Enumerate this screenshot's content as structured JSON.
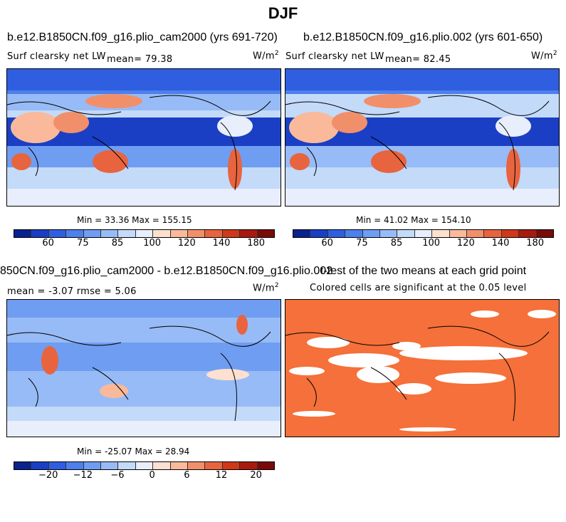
{
  "season": "DJF",
  "panels": [
    {
      "title": "b.e12.B1850CN.f09_g16.plio_cam2000 (yrs 691-720)",
      "variable": "Surf clearsky net LW",
      "stat": "mean=  79.38",
      "units": "W/m",
      "units_exp": "2",
      "minmax": "Min =  33.36 Max = 155.15"
    },
    {
      "title": "b.e12.B1850CN.f09_g16.plio.002 (yrs 601-650)",
      "variable": "Surf clearsky net LW",
      "stat": "mean=  82.45",
      "units": "W/m",
      "units_exp": "2",
      "minmax": "Min =  41.02 Max = 154.10"
    },
    {
      "title": "850CN.f09_g16.plio_cam2000 - b.e12.B1850CN.f09_g16.plio.002",
      "stat": "mean =  -3.07     rmse =   5.06",
      "units": "W/m",
      "units_exp": "2",
      "minmax": "Min = -25.07 Max =  28.94"
    },
    {
      "title": "t-test of the two means at each grid point",
      "subtitle": "Colored cells are significant at the 0.05 level"
    }
  ],
  "colorbars": {
    "colors": [
      "#08228e",
      "#1a3fc4",
      "#2f5fe0",
      "#4d80ec",
      "#6f9df2",
      "#97bbf6",
      "#c3daf9",
      "#e8eefb",
      "#fde0cf",
      "#f9b99a",
      "#f28f6b",
      "#e8643e",
      "#d03818",
      "#a91a0e",
      "#7a0a08"
    ],
    "abs_ticks": [
      "60",
      "75",
      "85",
      "100",
      "120",
      "140",
      "180"
    ],
    "diff_ticks": [
      "-20",
      "-12",
      "-6",
      "0",
      "6",
      "12",
      "20"
    ]
  },
  "colors": {
    "ttest_significant": "#f5703a",
    "ttest_background": "#ffffff",
    "coast": "#000000"
  }
}
